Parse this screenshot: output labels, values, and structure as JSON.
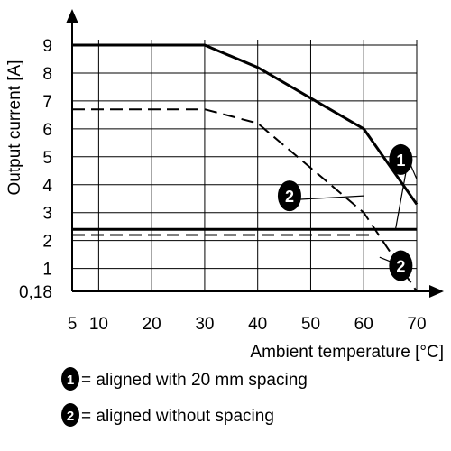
{
  "chart_data": {
    "type": "line",
    "xlabel": "Ambient temperature [°C]",
    "ylabel": "Output current [A]",
    "x_ticks": [
      {
        "value": 5,
        "label": "5"
      },
      {
        "value": 10,
        "label": "10"
      },
      {
        "value": 20,
        "label": "20"
      },
      {
        "value": 30,
        "label": "30"
      },
      {
        "value": 40,
        "label": "40"
      },
      {
        "value": 50,
        "label": "50"
      },
      {
        "value": 60,
        "label": "60"
      },
      {
        "value": 70,
        "label": "70"
      }
    ],
    "y_ticks": [
      {
        "value": 0.18,
        "label": "0,18"
      },
      {
        "value": 1,
        "label": "1"
      },
      {
        "value": 2,
        "label": "2"
      },
      {
        "value": 3,
        "label": "3"
      },
      {
        "value": 4,
        "label": "4"
      },
      {
        "value": 5,
        "label": "5"
      },
      {
        "value": 6,
        "label": "6"
      },
      {
        "value": 7,
        "label": "7"
      },
      {
        "value": 8,
        "label": "8"
      },
      {
        "value": 9,
        "label": "9"
      }
    ],
    "xlim": [
      5,
      70
    ],
    "ylim": [
      0.18,
      9
    ],
    "series": [
      {
        "marker": "1",
        "style": "solid",
        "x": [
          5,
          30,
          40,
          60,
          70
        ],
        "y": [
          9,
          9,
          8.2,
          6,
          3.3
        ]
      },
      {
        "marker": "2",
        "style": "dashed",
        "x": [
          5,
          30,
          40,
          60,
          70
        ],
        "y": [
          6.7,
          6.7,
          6.2,
          3.0,
          0.18
        ]
      }
    ],
    "reference_lines": [
      {
        "marker": "1",
        "style": "solid",
        "y": 2.4,
        "x": [
          5,
          70
        ]
      },
      {
        "marker": "2",
        "style": "dashed",
        "y": 2.2,
        "x": [
          5,
          62
        ]
      }
    ],
    "markers": [
      {
        "label": "1",
        "x": 67,
        "y": 4.9,
        "point_x": 70,
        "point_y": 4.2,
        "point2_x": 66,
        "point2_y": 2.4
      },
      {
        "label": "2",
        "x": 46,
        "y": 3.6,
        "point_x": 60,
        "point_y": 3.6
      },
      {
        "label": "2",
        "x": 67,
        "y": 1.1,
        "point_x": 63,
        "point_y": 1.4
      }
    ],
    "legend": [
      {
        "marker": "1",
        "text": "= aligned with 20 mm spacing"
      },
      {
        "marker": "2",
        "text": "= aligned without spacing"
      }
    ]
  }
}
